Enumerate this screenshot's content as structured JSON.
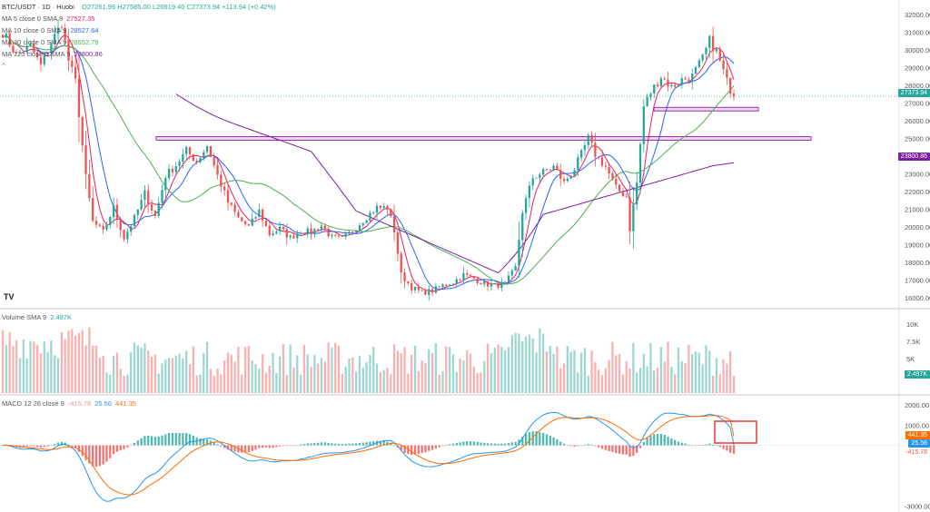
{
  "header": {
    "symbol": "BTC/USDT · 1D · Huobi",
    "ohlc": "O27261.99 H27585.00 L26919.40 C27373.94 +113.94 (+0.42%)"
  },
  "legends": {
    "ma5": {
      "label": "MA 5 close 0 SMA 9",
      "value": "27527.35",
      "color": "#e91e63"
    },
    "ma10": {
      "label": "MA 10 close 0 SMA 9",
      "value": "28527.64",
      "color": "#2962ff"
    },
    "ma30": {
      "label": "MA 30 close 0 SMA 9",
      "value": "28552.79",
      "color": "#4caf50"
    },
    "ma120": {
      "label": "MA 120 close 0 SMA 9",
      "value": "23800.86",
      "color": "#7b1fa2"
    },
    "volume": {
      "label": "Volume SMA 9",
      "value": "2.497K"
    },
    "macd": {
      "label": "MACD 12 26 close 9",
      "hist": "-415.78",
      "macd": "25.56",
      "signal": "441.35"
    }
  },
  "logo": "TV",
  "price_badges": {
    "last": "27373.94",
    "ma120": "23800.86"
  },
  "volume_badge": "2.497K",
  "macd_badges": {
    "signal": "441.35",
    "macd": "25.56",
    "hist": "-415.78"
  },
  "chart_data": {
    "type": "candlestick",
    "price_axis": {
      "ticks": [
        "32000.00",
        "31000.00",
        "30000.00",
        "29000.00",
        "28000.00",
        "27000.00",
        "26000.00",
        "25000.00",
        "24000.00",
        "23000.00",
        "22000.00",
        "21000.00",
        "20000.00",
        "19000.00",
        "18000.00",
        "17000.00",
        "16000.00"
      ],
      "range": [
        15500,
        32500
      ]
    },
    "volume_axis": {
      "ticks": [
        "10K",
        "7.5K",
        "5K"
      ],
      "range": [
        0,
        12000
      ]
    },
    "macd_axis": {
      "ticks": [
        "2000.00",
        "1000.00",
        "-3000.00"
      ],
      "range": [
        -3200,
        2400
      ]
    },
    "resistance_zones": [
      {
        "from": 24900,
        "to": 25100
      },
      {
        "from": 26550,
        "to": 26750
      }
    ],
    "last_price": 27373.94,
    "anchors": [
      [
        0,
        31000
      ],
      [
        4,
        29700
      ],
      [
        8,
        30200
      ],
      [
        11,
        29100
      ],
      [
        14,
        30400
      ],
      [
        17,
        31500
      ],
      [
        19,
        29400
      ],
      [
        21,
        28200
      ],
      [
        24,
        22800
      ],
      [
        26,
        20300
      ],
      [
        29,
        19700
      ],
      [
        32,
        21100
      ],
      [
        35,
        19400
      ],
      [
        38,
        20500
      ],
      [
        41,
        21900
      ],
      [
        44,
        20600
      ],
      [
        47,
        22900
      ],
      [
        50,
        23500
      ],
      [
        53,
        24300
      ],
      [
        56,
        23700
      ],
      [
        59,
        24600
      ],
      [
        62,
        22900
      ],
      [
        65,
        21400
      ],
      [
        68,
        20500
      ],
      [
        71,
        20000
      ],
      [
        74,
        20900
      ],
      [
        77,
        19600
      ],
      [
        80,
        19900
      ],
      [
        83,
        19400
      ],
      [
        86,
        19800
      ],
      [
        89,
        19700
      ],
      [
        92,
        20100
      ],
      [
        95,
        19400
      ],
      [
        98,
        19300
      ],
      [
        101,
        19800
      ],
      [
        104,
        20400
      ],
      [
        108,
        21100
      ],
      [
        111,
        21100
      ],
      [
        113,
        19800
      ],
      [
        115,
        17300
      ],
      [
        118,
        16600
      ],
      [
        121,
        16300
      ],
      [
        124,
        16400
      ],
      [
        127,
        16700
      ],
      [
        130,
        16900
      ],
      [
        133,
        17300
      ],
      [
        136,
        17100
      ],
      [
        139,
        16800
      ],
      [
        142,
        16700
      ],
      [
        145,
        16800
      ],
      [
        148,
        17700
      ],
      [
        150,
        20900
      ],
      [
        153,
        22800
      ],
      [
        156,
        23100
      ],
      [
        159,
        23400
      ],
      [
        162,
        22500
      ],
      [
        165,
        23300
      ],
      [
        167,
        24100
      ],
      [
        169,
        25000
      ],
      [
        171,
        24100
      ],
      [
        174,
        23400
      ],
      [
        177,
        22200
      ],
      [
        180,
        21700
      ],
      [
        181,
        19900
      ],
      [
        183,
        22500
      ],
      [
        185,
        26800
      ],
      [
        187,
        27600
      ],
      [
        190,
        28500
      ],
      [
        193,
        27900
      ],
      [
        196,
        28300
      ],
      [
        199,
        28500
      ],
      [
        202,
        29500
      ],
      [
        204,
        30500
      ],
      [
        206,
        29900
      ],
      [
        209,
        28200
      ],
      [
        211,
        27373.94
      ]
    ]
  }
}
